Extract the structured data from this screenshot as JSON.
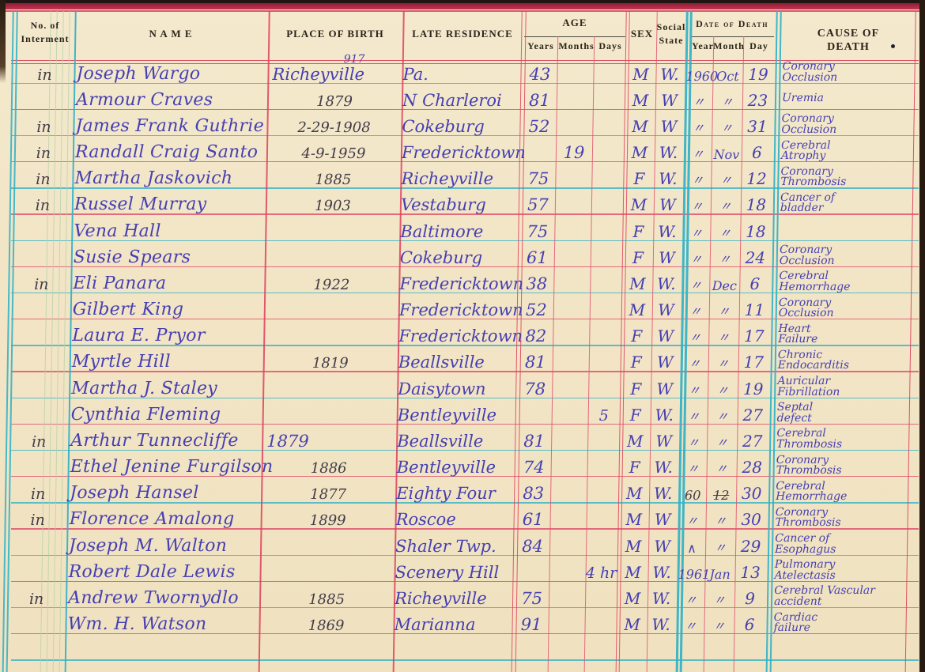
{
  "document_type": "interment-ledger-page",
  "colors": {
    "paper": "#f2e5c6",
    "rule_red": "#e0536e",
    "rule_red_strong": "#dd3f5c",
    "rule_teal": "#35b2c6",
    "rule_green": "#b7d2a8",
    "ink": "#453fb2",
    "pencil": "#423c48",
    "header_text": "#2c241c",
    "top_band": "#a02540",
    "page_edge": "#271a10"
  },
  "header": {
    "interment": "No. of\nInterment",
    "name": "N A M E",
    "place_of_birth": "PLACE OF BIRTH",
    "late_residence": "LATE RESIDENCE",
    "age_group": "AGE",
    "age_years": "Years",
    "age_months": "Months",
    "age_days": "Days",
    "sex": "SEX",
    "social_state": "Social\nState",
    "dod_group": "Date of Death",
    "dod_year": "Year",
    "dod_month": "Month",
    "dod_day": "Day",
    "cause": "CAUSE OF DEATH"
  },
  "rows": [
    {
      "mark": "in",
      "name": "Joseph Wargo",
      "birth": "Richeyville",
      "birth_super": "917",
      "birth_ink": true,
      "residence": "Pa.",
      "years": "43",
      "months": "",
      "days": "",
      "sex": "M",
      "social": "W.",
      "dyear": "1960",
      "dmonth": "Oct",
      "dday": "19",
      "cause": "Coronary\nOcclusion"
    },
    {
      "mark": "",
      "name": "Armour Craves",
      "birth": "1879",
      "residence": "N Charleroi",
      "years": "81",
      "months": "",
      "days": "",
      "sex": "M",
      "social": "W",
      "dyear": "〃",
      "dmonth": "〃",
      "dday": "23",
      "cause": "Uremia"
    },
    {
      "mark": "in",
      "name": "James Frank Guthrie",
      "birth": "2-29-1908",
      "residence": "Cokeburg",
      "years": "52",
      "months": "",
      "days": "",
      "sex": "M",
      "social": "W",
      "dyear": "〃",
      "dmonth": "〃",
      "dday": "31",
      "cause": "Coronary\nOcclusion"
    },
    {
      "mark": "in",
      "name": "Randall Craig Santo",
      "birth": "4-9-1959",
      "residence": "Fredericktown",
      "years": "",
      "months": "19",
      "days": "",
      "sex": "M",
      "social": "W.",
      "dyear": "〃",
      "dmonth": "Nov",
      "dday": "6",
      "cause": "Cerebral\nAtrophy"
    },
    {
      "mark": "in",
      "name": "Martha Jaskovich",
      "birth": "1885",
      "residence": "Richeyville",
      "years": "75",
      "months": "",
      "days": "",
      "sex": "F",
      "social": "W.",
      "dyear": "〃",
      "dmonth": "〃",
      "dday": "12",
      "cause": "Coronary\nThrombosis"
    },
    {
      "mark": "in",
      "name": "Russel Murray",
      "birth": "1903",
      "residence": "Vestaburg",
      "years": "57",
      "months": "",
      "days": "",
      "sex": "M",
      "social": "W",
      "dyear": "〃",
      "dmonth": "〃",
      "dday": "18",
      "cause": "Cancer of\nbladder"
    },
    {
      "mark": "",
      "name": "Vena Hall",
      "birth": "",
      "residence": "Baltimore",
      "years": "75",
      "months": "",
      "days": "",
      "sex": "F",
      "social": "W.",
      "dyear": "〃",
      "dmonth": "〃",
      "dday": "18",
      "cause": ""
    },
    {
      "mark": "",
      "name": "Susie Spears",
      "birth": "",
      "residence": "Cokeburg",
      "years": "61",
      "months": "",
      "days": "",
      "sex": "F",
      "social": "W",
      "dyear": "〃",
      "dmonth": "〃",
      "dday": "24",
      "cause": "Coronary\nOcclusion"
    },
    {
      "mark": "in",
      "name": "Eli Panara",
      "birth": "1922",
      "residence": "Fredericktown",
      "years": "38",
      "months": "",
      "days": "",
      "sex": "M",
      "social": "W.",
      "dyear": "〃",
      "dmonth": "Dec",
      "dday": "6",
      "cause": "Cerebral\nHemorrhage"
    },
    {
      "mark": "",
      "name": "Gilbert King",
      "birth": "",
      "residence": "Fredericktown",
      "years": "52",
      "months": "",
      "days": "",
      "sex": "M",
      "social": "W",
      "dyear": "〃",
      "dmonth": "〃",
      "dday": "11",
      "cause": "Coronary\nOcclusion"
    },
    {
      "mark": "",
      "name": "Laura E. Pryor",
      "birth": "",
      "residence": "Fredericktown",
      "years": "82",
      "months": "",
      "days": "",
      "sex": "F",
      "social": "W",
      "dyear": "〃",
      "dmonth": "〃",
      "dday": "17",
      "cause": "Heart\nFailure"
    },
    {
      "mark": "",
      "name": "Myrtle Hill",
      "birth": "1819",
      "residence": "Beallsville",
      "years": "81",
      "months": "",
      "days": "",
      "sex": "F",
      "social": "W",
      "dyear": "〃",
      "dmonth": "〃",
      "dday": "17",
      "cause": "Chronic\nEndocarditis"
    },
    {
      "mark": "",
      "name": "Martha J. Staley",
      "birth": "",
      "residence": "Daisytown",
      "years": "78",
      "months": "",
      "days": "",
      "sex": "F",
      "social": "W",
      "dyear": "〃",
      "dmonth": "〃",
      "dday": "19",
      "cause": "Auricular\nFibrillation"
    },
    {
      "mark": "",
      "name": "Cynthia Fleming",
      "birth": "",
      "residence": "Bentleyville",
      "years": "",
      "months": "",
      "days": "5",
      "sex": "F",
      "social": "W.",
      "dyear": "〃",
      "dmonth": "〃",
      "dday": "27",
      "cause": "Septal\ndefect"
    },
    {
      "mark": "in",
      "name": "Arthur Tunnecliffe",
      "birth": "1879",
      "birth_ink": true,
      "residence": "Beallsville",
      "years": "81",
      "months": "",
      "days": "",
      "sex": "M",
      "social": "W",
      "dyear": "〃",
      "dmonth": "〃",
      "dday": "27",
      "cause": "Cerebral\nThrombosis"
    },
    {
      "mark": "",
      "name": "Ethel Jenine Furgilson",
      "birth": "1886",
      "residence": "Bentleyville",
      "years": "74",
      "months": "",
      "days": "",
      "sex": "F",
      "social": "W.",
      "dyear": "〃",
      "dmonth": "〃",
      "dday": "28",
      "cause": "Coronary\nThrombosis"
    },
    {
      "mark": "in",
      "name": "Joseph Hansel",
      "birth": "1877",
      "residence": "Eighty Four",
      "years": "83",
      "months": "",
      "days": "",
      "sex": "M",
      "social": "W.",
      "dyear": "60",
      "dmonth": "12",
      "dmonth_struck": true,
      "date_pencil": true,
      "dday": "30",
      "cause": "Cerebral\nHemorrhage"
    },
    {
      "mark": "in",
      "name": "Florence Amalong",
      "birth": "1899",
      "residence": "Roscoe",
      "years": "61",
      "months": "",
      "days": "",
      "sex": "M",
      "social": "W",
      "dyear": "〃",
      "dmonth": "〃",
      "dday": "30",
      "cause": "Coronary\nThrombosis"
    },
    {
      "mark": "",
      "name": "Joseph M. Walton",
      "birth": "",
      "residence": "Shaler Twp.",
      "years": "84",
      "months": "",
      "days": "",
      "sex": "M",
      "social": "W",
      "dyear": "∧",
      "dmonth": "〃",
      "dday": "29",
      "cause": "Cancer of\nEsophagus"
    },
    {
      "mark": "",
      "name": "Robert Dale Lewis",
      "birth": "",
      "residence": "Scenery Hill",
      "years": "",
      "months": "",
      "days": "4 hr",
      "sex": "M",
      "social": "W.",
      "dyear": "1961",
      "dmonth": "Jan",
      "dday": "13",
      "cause": "Pulmonary\nAtelectasis"
    },
    {
      "mark": "in",
      "name": "Andrew Twornydlo",
      "birth": "1885",
      "residence": "Richeyville",
      "years": "75",
      "months": "",
      "days": "",
      "sex": "M",
      "social": "W.",
      "dyear": "〃",
      "dmonth": "〃",
      "dday": "9",
      "cause": "Cerebral Vascular\naccident"
    },
    {
      "mark": "",
      "name": "Wm. H. Watson",
      "birth": "1869",
      "residence": "Marianna",
      "years": "91",
      "months": "",
      "days": "",
      "sex": "M",
      "social": "W.",
      "dyear": "〃",
      "dmonth": "〃",
      "dday": "6",
      "cause": "Cardiac\nfailure"
    }
  ]
}
